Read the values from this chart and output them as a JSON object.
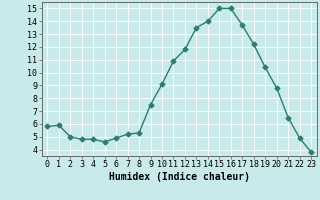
{
  "x": [
    0,
    1,
    2,
    3,
    4,
    5,
    6,
    7,
    8,
    9,
    10,
    11,
    12,
    13,
    14,
    15,
    16,
    17,
    18,
    19,
    20,
    21,
    22,
    23
  ],
  "y": [
    5.8,
    5.9,
    5.0,
    4.8,
    4.8,
    4.6,
    4.9,
    5.2,
    5.3,
    7.5,
    9.1,
    10.9,
    11.8,
    13.5,
    14.0,
    15.0,
    15.0,
    13.7,
    12.2,
    10.4,
    8.8,
    6.5,
    4.9,
    3.8
  ],
  "line_color": "#2e7d6e",
  "marker": "D",
  "markersize": 2.5,
  "linewidth": 1.0,
  "bg_color": "#c8eaea",
  "grid_color": "#ffffff",
  "xlabel": "Humidex (Indice chaleur)",
  "xlabel_fontsize": 7,
  "tick_fontsize": 6,
  "xlim": [
    -0.5,
    23.5
  ],
  "ylim": [
    3.5,
    15.5
  ],
  "yticks": [
    4,
    5,
    6,
    7,
    8,
    9,
    10,
    11,
    12,
    13,
    14,
    15
  ],
  "xticks": [
    0,
    1,
    2,
    3,
    4,
    5,
    6,
    7,
    8,
    9,
    10,
    11,
    12,
    13,
    14,
    15,
    16,
    17,
    18,
    19,
    20,
    21,
    22,
    23
  ]
}
